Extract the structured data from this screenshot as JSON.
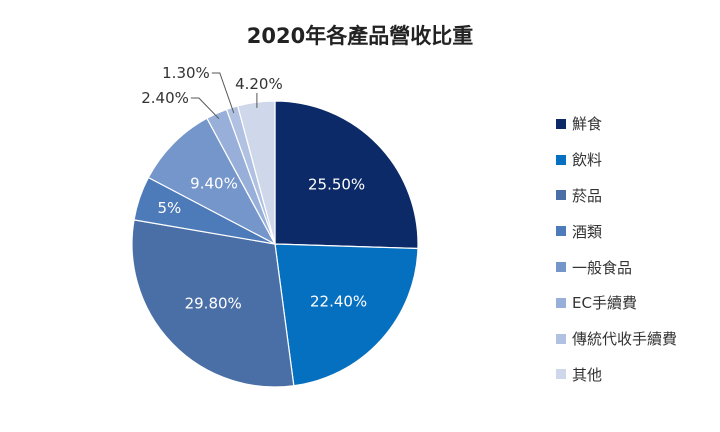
{
  "chart_data": {
    "type": "pie",
    "title": "2020年各產品營收比重",
    "categories": [
      "鮮食",
      "飲料",
      "菸品",
      "酒類",
      "一般食品",
      "EC手續費",
      "傳統代收手續費",
      "其他"
    ],
    "values": [
      25.5,
      22.4,
      29.8,
      5,
      9.4,
      2.4,
      1.3,
      4.2
    ],
    "data_labels": [
      "25.50%",
      "22.40%",
      "29.80%",
      "5%",
      "9.40%",
      "2.40%",
      "1.30%",
      "4.20%"
    ],
    "colors": [
      "#0c2a67",
      "#0670c0",
      "#4a6fa6",
      "#4d7ab9",
      "#7596ca",
      "#98b0d9",
      "#b1c1e2",
      "#cfd8ea"
    ],
    "legend_position": "right"
  }
}
